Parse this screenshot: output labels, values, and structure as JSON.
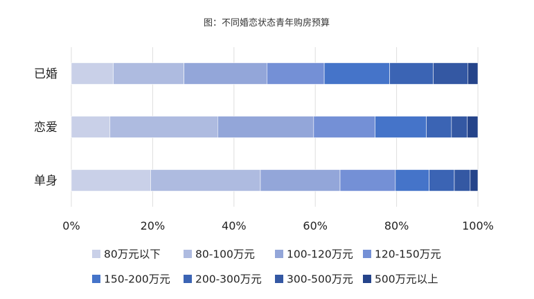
{
  "chart_data": {
    "type": "bar",
    "orientation": "horizontal",
    "stacked": "percent",
    "title": "图：不同婚恋状态青年购房预算",
    "categories": [
      "已婚",
      "恋爱",
      "单身"
    ],
    "xlim": [
      0,
      100
    ],
    "xticks": [
      "0%",
      "20%",
      "40%",
      "60%",
      "80%",
      "100%"
    ],
    "grid": "vertical",
    "legend_position": "bottom",
    "series": [
      {
        "name": "80万元以下",
        "color": "#c9d0e8",
        "values": [
          10.3,
          9.5,
          19.5
        ]
      },
      {
        "name": "80-100万元",
        "color": "#aebbe0",
        "values": [
          17.4,
          26.5,
          27.0
        ]
      },
      {
        "name": "100-120万元",
        "color": "#93a6d9",
        "values": [
          20.4,
          23.6,
          19.6
        ]
      },
      {
        "name": "120-150万元",
        "color": "#7490d6",
        "values": [
          14.1,
          15.1,
          13.6
        ]
      },
      {
        "name": "150-200万元",
        "color": "#4574c9",
        "values": [
          16.1,
          12.6,
          8.3
        ]
      },
      {
        "name": "200-300万元",
        "color": "#3b64b4",
        "values": [
          10.7,
          6.2,
          6.2
        ]
      },
      {
        "name": "300-500万元",
        "color": "#3458a3",
        "values": [
          8.5,
          3.9,
          3.9
        ]
      },
      {
        "name": "500万元以上",
        "color": "#25448a",
        "values": [
          2.5,
          2.6,
          1.9
        ]
      }
    ]
  }
}
